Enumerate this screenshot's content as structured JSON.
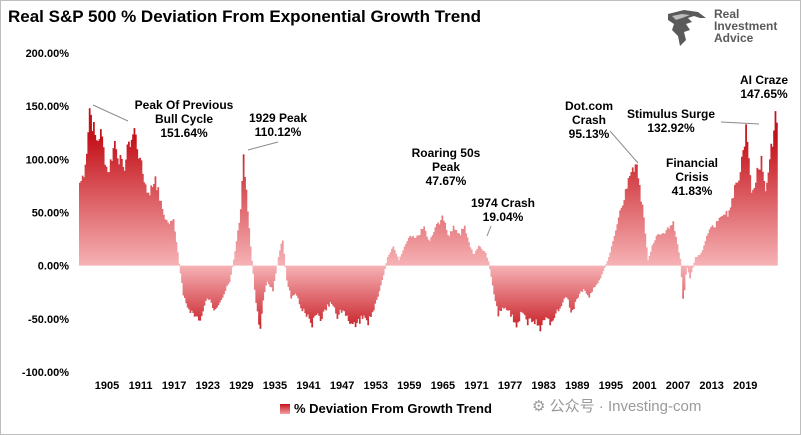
{
  "title": "Real S&P 500 % Deviation From Exponential Growth Trend",
  "logo": {
    "lines": [
      "Real",
      "Investment",
      "Advice"
    ],
    "icon": "eagle-icon"
  },
  "watermark": "⚙ 公众号 · Investing-com",
  "colors": {
    "bar_dark": "#c4121a",
    "bar_light": "#f4a0a4",
    "axis_text": "#000000",
    "grid": "#d9d9d9"
  },
  "chart_data": {
    "type": "area",
    "title": "Real S&P 500 % Deviation From Exponential Growth Trend",
    "xlabel": "",
    "ylabel": "",
    "xlim": [
      1900,
      2024.5
    ],
    "ylim": [
      -100,
      200
    ],
    "y_ticks": [
      200,
      150,
      100,
      50,
      0,
      -50,
      -100
    ],
    "y_tick_labels": [
      "200.00%",
      "150.00%",
      "100.00%",
      "50.00%",
      "0.00%",
      "-50.00%",
      "-100.00%"
    ],
    "x_ticks": [
      1905,
      1911,
      1917,
      1923,
      1929,
      1935,
      1941,
      1947,
      1953,
      1959,
      1965,
      1971,
      1977,
      1983,
      1989,
      1995,
      2001,
      2007,
      2013,
      2019
    ],
    "grid": false,
    "legend_position": "bottom-center",
    "series": [
      {
        "name": "% Deviation From Growth Trend",
        "x": [
          1900,
          1901,
          1901.8,
          1903,
          1903.7,
          1905,
          1906.2,
          1907.8,
          1908.8,
          1909.8,
          1910.8,
          1912.2,
          1913.5,
          1914.8,
          1915.8,
          1916.8,
          1917.6,
          1918.5,
          1919.3,
          1920.5,
          1921.6,
          1922.8,
          1924,
          1925.5,
          1926.8,
          1927.8,
          1928.8,
          1929.3,
          1929.7,
          1930.5,
          1931.5,
          1932.2,
          1932.8,
          1933.5,
          1934.5,
          1935.5,
          1936.2,
          1937,
          1937.8,
          1938.8,
          1939.5,
          1940.5,
          1941.5,
          1942.2,
          1943,
          1944,
          1945,
          1946,
          1947,
          1948,
          1949.3,
          1950.5,
          1951.5,
          1952.5,
          1953.5,
          1954.3,
          1955,
          1956,
          1957,
          1958,
          1959,
          1960,
          1961.5,
          1962.4,
          1963.5,
          1964.8,
          1965.8,
          1966.8,
          1967.8,
          1968.8,
          1969.5,
          1970.4,
          1971.2,
          1972.5,
          1973,
          1973.8,
          1974.7,
          1975.8,
          1977,
          1978,
          1979,
          1980,
          1981,
          1982.3,
          1983.2,
          1984,
          1985,
          1986,
          1987,
          1987.8,
          1989,
          1990,
          1991,
          1992,
          1993,
          1994.5,
          1995.5,
          1996.5,
          1997.5,
          1998.5,
          1999.5,
          2000.1,
          2000.7,
          2001.5,
          2002.3,
          2003,
          2004,
          2005,
          2006,
          2007.3,
          2007.8,
          2008.4,
          2009,
          2010,
          2011,
          2012,
          2013,
          2014,
          2015,
          2016,
          2017,
          2018,
          2019,
          2019.8,
          2020.2,
          2021,
          2021.8,
          2022.5,
          2023.3,
          2024.3
        ],
        "values": [
          78,
          95,
          151.64,
          118,
          130,
          88,
          118,
          92,
          118,
          130,
          100,
          68,
          84,
          52,
          40,
          44,
          8,
          -28,
          -40,
          -48,
          -52,
          -30,
          -42,
          -30,
          -15,
          15,
          55,
          110.12,
          75,
          18,
          -35,
          -62,
          -30,
          -15,
          -24,
          8,
          26,
          -14,
          -32,
          -28,
          -40,
          -48,
          -58,
          -46,
          -52,
          -42,
          -36,
          -50,
          -42,
          -52,
          -58,
          -50,
          -56,
          -42,
          -24,
          -8,
          8,
          18,
          5,
          18,
          28,
          26,
          37,
          22,
          36,
          47.67,
          28,
          38,
          30,
          38,
          22,
          10,
          19.04,
          12,
          4,
          -20,
          -48,
          -40,
          -48,
          -58,
          -44,
          -56,
          -52,
          -62,
          -48,
          -56,
          -45,
          -38,
          -30,
          -45,
          -30,
          -22,
          -30,
          -20,
          -12,
          8,
          28,
          52,
          72,
          88,
          95.13,
          72,
          48,
          5,
          20,
          28,
          30,
          36,
          41.83,
          5,
          -35,
          0,
          -12,
          8,
          12,
          28,
          38,
          42,
          48,
          52,
          76,
          88,
          132.92,
          82,
          70,
          92,
          104,
          70,
          102,
          147.65
        ]
      }
    ],
    "annotations": [
      {
        "lines": [
          "Peak Of Previous",
          "Bull Cycle",
          "151.64%"
        ],
        "x": 1901.8,
        "y": 151.64
      },
      {
        "lines": [
          "1929 Peak",
          "110.12%"
        ],
        "x": 1929.3,
        "y": 110.12
      },
      {
        "lines": [
          "Roaring 50s",
          "Peak",
          "47.67%"
        ],
        "x": 1964.8,
        "y": 47.67
      },
      {
        "lines": [
          "1974 Crash",
          "19.04%"
        ],
        "x": 1971.2,
        "y": 19.04
      },
      {
        "lines": [
          "Dot.com",
          "Crash",
          "95.13%"
        ],
        "x": 1999.5,
        "y": 95.13
      },
      {
        "lines": [
          "Stimulus Surge",
          "132.92%"
        ],
        "x": 2019.8,
        "y": 132.92
      },
      {
        "lines": [
          "Financial",
          "Crisis",
          "41.83%"
        ],
        "x": 2007.3,
        "y": 41.83
      },
      {
        "lines": [
          "AI Craze",
          "147.65%"
        ],
        "x": 2024.3,
        "y": 147.65
      }
    ]
  }
}
